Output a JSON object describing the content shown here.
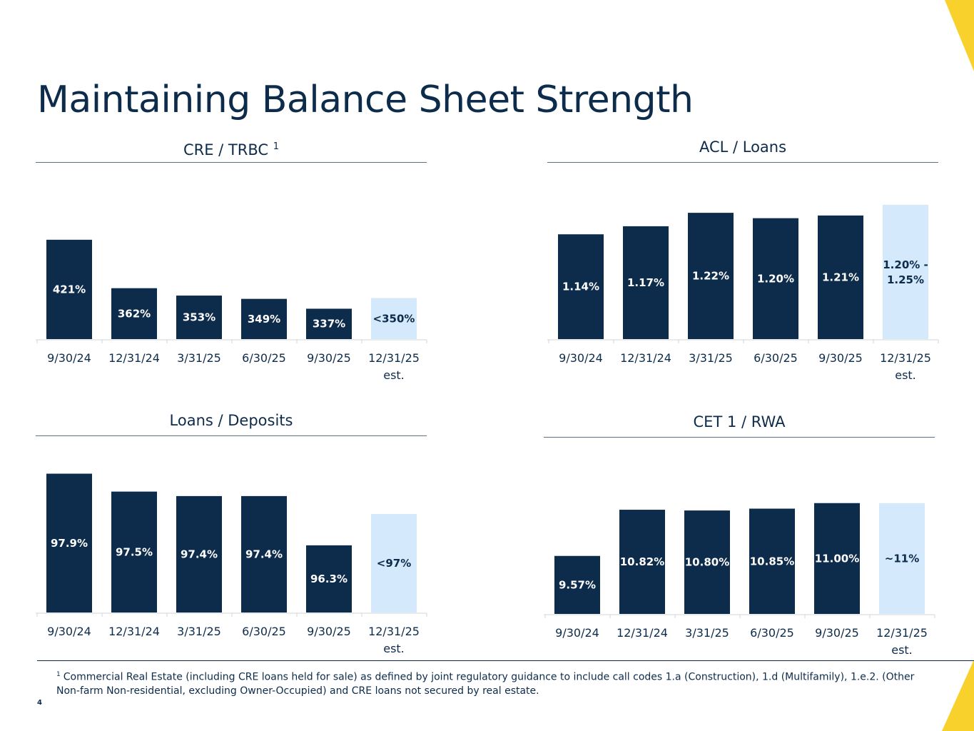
{
  "page": {
    "title": "Maintaining Balance Sheet Strength",
    "page_number": "4"
  },
  "colors": {
    "navy": "#0d2b4b",
    "light": "#d4e9fb",
    "accent": "#f8d12c",
    "rule": "#58708a"
  },
  "footnote": {
    "marker": "1",
    "text": "Commercial Real Estate (including CRE loans held for sale) as defined by joint regulatory guidance to include call codes 1.a (Construction), 1.d (Multifamily), 1.e.2. (Other Non-farm Non-residential, excluding Owner-Occupied) and CRE loans not secured by real estate."
  },
  "chart_data": [
    {
      "type": "bar",
      "title": "CRE / TRBC",
      "title_superscript": "1",
      "categories": [
        "9/30/24",
        "12/31/24",
        "3/31/25",
        "6/30/25",
        "9/30/25",
        "12/31/25 est."
      ],
      "values": [
        421,
        362,
        353,
        349,
        337,
        350
      ],
      "labels": [
        "421%",
        "362%",
        "353%",
        "349%",
        "337%",
        "<350%"
      ],
      "estimate_index": 5,
      "unit": "%",
      "ylim": [
        300,
        480
      ]
    },
    {
      "type": "bar",
      "title": "ACL / Loans",
      "categories": [
        "9/30/24",
        "12/31/24",
        "3/31/25",
        "6/30/25",
        "9/30/25",
        "12/31/25 est."
      ],
      "values": [
        1.14,
        1.17,
        1.22,
        1.2,
        1.21,
        1.25
      ],
      "labels": [
        "1.14%",
        "1.17%",
        "1.22%",
        "1.20%",
        "1.21%",
        "1.20% - 1.25%"
      ],
      "estimate_index": 5,
      "unit": "%",
      "ylim": [
        0.75,
        1.3
      ]
    },
    {
      "type": "bar",
      "title": "Loans / Deposits",
      "categories": [
        "9/30/24",
        "12/31/24",
        "3/31/25",
        "6/30/25",
        "9/30/25",
        "12/31/25 est."
      ],
      "values": [
        97.9,
        97.5,
        97.4,
        97.4,
        96.3,
        97.0
      ],
      "labels": [
        "97.9%",
        "97.5%",
        "97.4%",
        "97.4%",
        "96.3%",
        "<97%"
      ],
      "estimate_index": 5,
      "unit": "%",
      "ylim": [
        94.8,
        98.1
      ]
    },
    {
      "type": "bar",
      "title": "CET 1 / RWA",
      "categories": [
        "9/30/24",
        "12/31/24",
        "3/31/25",
        "6/30/25",
        "9/30/25",
        "12/31/25 est."
      ],
      "values": [
        9.57,
        10.82,
        10.8,
        10.85,
        11.0,
        11.0
      ],
      "labels": [
        "9.57%",
        "10.82%",
        "10.80%",
        "10.85%",
        "11.00%",
        "~11%"
      ],
      "estimate_index": 5,
      "unit": "%",
      "ylim": [
        8.0,
        12.0
      ]
    }
  ]
}
